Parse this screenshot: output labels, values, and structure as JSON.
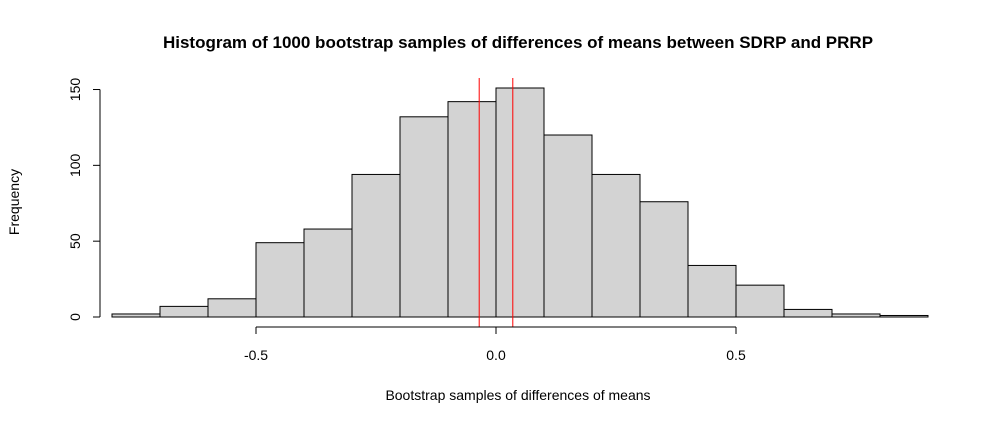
{
  "chart_data": {
    "type": "bar",
    "title": "Histogram of 1000 bootstrap samples of differences of means between SDRP and PRRP",
    "xlabel": "Bootstrap samples of differences of means",
    "ylabel": "Frequency",
    "bin_edges": [
      -0.8,
      -0.7,
      -0.6,
      -0.5,
      -0.4,
      -0.3,
      -0.2,
      -0.1,
      0.0,
      0.1,
      0.2,
      0.3,
      0.4,
      0.5,
      0.6,
      0.7,
      0.8,
      0.9
    ],
    "values": [
      2,
      7,
      12,
      49,
      58,
      94,
      132,
      142,
      151,
      120,
      94,
      76,
      34,
      21,
      5,
      2,
      1
    ],
    "xlim": [
      -0.8,
      0.9
    ],
    "ylim": [
      0,
      151
    ],
    "xticks": [
      -0.5,
      0.0,
      0.5
    ],
    "xtick_labels": [
      "-0.5",
      "0.0",
      "0.5"
    ],
    "xaxis_range": [
      -0.5,
      0.5
    ],
    "yticks": [
      0,
      50,
      100,
      150
    ],
    "ytick_labels": [
      "0",
      "50",
      "100",
      "150"
    ],
    "reference_lines": [
      {
        "x": -0.035,
        "color": "#ff0000"
      },
      {
        "x": 0.035,
        "color": "#ff0000"
      }
    ],
    "bar_color": "#d3d3d3",
    "grid": false,
    "legend": "none"
  }
}
